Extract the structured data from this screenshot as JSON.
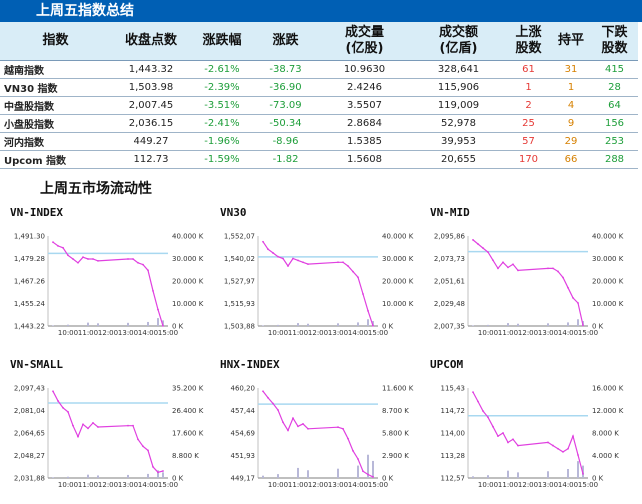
{
  "header_title": "上周五指数总结",
  "liquidity_title": "上周五市场流动性",
  "table": {
    "headers": [
      "指数",
      "收盘点数",
      "涨跌幅",
      "涨跌",
      "成交量\n(亿股)",
      "成交额\n(亿盾)",
      "上涨\n股数",
      "持平",
      "下跌\n股数"
    ],
    "rows": [
      {
        "name": "越南指数",
        "close": "1,443.32",
        "pct": "-2.61%",
        "chg": "-38.73",
        "volume": "10.9630",
        "value": "328,641",
        "up": "61",
        "flat": "31",
        "down": "415"
      },
      {
        "name": "VN30 指数",
        "close": "1,503.98",
        "pct": "-2.39%",
        "chg": "-36.90",
        "volume": "2.4246",
        "value": "115,906",
        "up": "1",
        "flat": "1",
        "down": "28"
      },
      {
        "name": "中盘股指数",
        "close": "2,007.45",
        "pct": "-3.51%",
        "chg": "-73.09",
        "volume": "3.5507",
        "value": "119,009",
        "up": "2",
        "flat": "4",
        "down": "64"
      },
      {
        "name": "小盘股指数",
        "close": "2,036.15",
        "pct": "-2.41%",
        "chg": "-50.34",
        "volume": "2.8684",
        "value": "52,978",
        "up": "25",
        "flat": "9",
        "down": "156"
      },
      {
        "name": "河内指数",
        "close": "449.27",
        "pct": "-1.96%",
        "chg": "-8.96",
        "volume": "1.5385",
        "value": "39,953",
        "up": "57",
        "flat": "29",
        "down": "253"
      },
      {
        "name": "Upcom 指数",
        "close": "112.73",
        "pct": "-1.59%",
        "chg": "-1.82",
        "volume": "1.5608",
        "value": "20,655",
        "up": "170",
        "flat": "66",
        "down": "288"
      }
    ]
  },
  "colors": {
    "header_bar": "#005fb4",
    "line": "#e040e0",
    "volume": "#b8b8d8",
    "ref_line": "#a8d8f0",
    "up": "#e53935",
    "flat": "#d68000",
    "down": "#1e9e3a"
  },
  "chart_data": [
    {
      "type": "line",
      "title": "VN-INDEX",
      "x_ticks": [
        "10:00",
        "11:00",
        "12:00",
        "13:00",
        "14:00",
        "15:00"
      ],
      "y_ticks": [
        "1,491.30",
        "1,479.28",
        "1,467.26",
        "1,455.24",
        "1,443.22"
      ],
      "y_right_ticks": [
        "40.000 K",
        "30.000 K",
        "20.000 K",
        "10.000 K",
        "0 K"
      ],
      "ylim": [
        1443.22,
        1491.3
      ],
      "y_right_lim": [
        0,
        40000
      ],
      "ref": 1482.05,
      "series": [
        {
          "name": "price",
          "x": [
            9.25,
            9.5,
            9.75,
            10.0,
            10.25,
            10.5,
            10.75,
            11.0,
            11.25,
            11.5,
            13.0,
            13.25,
            13.5,
            13.75,
            14.0,
            14.25,
            14.5,
            14.75
          ],
          "y": [
            1488,
            1486,
            1485,
            1481,
            1479,
            1477,
            1480,
            1479,
            1479,
            1478,
            1479,
            1479,
            1477,
            1476,
            1473,
            1462,
            1452,
            1443.3
          ]
        }
      ],
      "volume": {
        "x": [
          9.25,
          10.0,
          11.0,
          11.5,
          13.0,
          14.0,
          14.5,
          14.75
        ],
        "y": [
          300,
          600,
          1500,
          1200,
          1400,
          1800,
          3500,
          2500
        ]
      }
    },
    {
      "type": "line",
      "title": "VN30",
      "x_ticks": [
        "10:00",
        "11:00",
        "12:00",
        "13:00",
        "14:00",
        "15:00"
      ],
      "y_ticks": [
        "1,552,07",
        "1,540,02",
        "1,527,97",
        "1,515,93",
        "1,503,88"
      ],
      "y_right_ticks": [
        "40.000 K",
        "30.000 K",
        "20.000 K",
        "10.000 K",
        "0 K"
      ],
      "ylim": [
        1503.88,
        1552.07
      ],
      "y_right_lim": [
        0,
        40000
      ],
      "ref": 1540.88,
      "series": [
        {
          "name": "price",
          "x": [
            9.25,
            9.5,
            9.75,
            10.0,
            10.25,
            10.5,
            10.75,
            11.0,
            11.25,
            11.5,
            13.0,
            13.25,
            13.5,
            13.75,
            14.0,
            14.25,
            14.5,
            14.75
          ],
          "y": [
            1549,
            1545,
            1543,
            1541,
            1540,
            1536,
            1540,
            1539,
            1538,
            1537,
            1538,
            1538,
            1536,
            1533,
            1530,
            1521,
            1512,
            1504
          ]
        }
      ],
      "volume": {
        "x": [
          9.25,
          10.0,
          11.0,
          11.5,
          13.0,
          14.0,
          14.5,
          14.75
        ],
        "y": [
          300,
          500,
          1300,
          1000,
          1200,
          1600,
          3000,
          2200
        ]
      }
    },
    {
      "type": "line",
      "title": "VN-MID",
      "x_ticks": [
        "10:00",
        "11:00",
        "12:00",
        "13:00",
        "14:00",
        "15:00"
      ],
      "y_ticks": [
        "2,095,86",
        "2,073,73",
        "2,051,61",
        "2,029,48",
        "2,007,35"
      ],
      "y_right_ticks": [
        "40.000 K",
        "30.000 K",
        "20.000 K",
        "10.000 K",
        "0 K"
      ],
      "ylim": [
        2007.35,
        2095.86
      ],
      "y_right_lim": [
        0,
        40000
      ],
      "ref": 2080.54,
      "series": [
        {
          "name": "price",
          "x": [
            9.25,
            9.5,
            9.75,
            10.0,
            10.25,
            10.5,
            10.75,
            11.0,
            11.25,
            11.5,
            13.0,
            13.25,
            13.5,
            13.75,
            14.0,
            14.25,
            14.5,
            14.75
          ],
          "y": [
            2092,
            2088,
            2084,
            2080,
            2072,
            2064,
            2070,
            2065,
            2068,
            2062,
            2064,
            2064,
            2061,
            2055,
            2045,
            2035,
            2030,
            2008
          ]
        }
      ],
      "volume": {
        "x": [
          9.25,
          10.0,
          11.0,
          11.5,
          13.0,
          14.0,
          14.5,
          14.75
        ],
        "y": [
          300,
          500,
          1300,
          1000,
          1200,
          1600,
          3000,
          2200
        ]
      }
    },
    {
      "type": "line",
      "title": "VN-SMALL",
      "x_ticks": [
        "10:00",
        "11:00",
        "12:00",
        "13:00",
        "14:00",
        "15:00"
      ],
      "y_ticks": [
        "2,097,43",
        "2,081,04",
        "2,064,65",
        "2,048,27",
        "2,031,88"
      ],
      "y_right_ticks": [
        "35.200 K",
        "26.400 K",
        "17.600 K",
        "8.800 K",
        "0 K"
      ],
      "ylim": [
        2031.88,
        2097.43
      ],
      "y_right_lim": [
        0,
        35200
      ],
      "ref": 2086.49,
      "series": [
        {
          "name": "price",
          "x": [
            9.25,
            9.5,
            9.75,
            10.0,
            10.25,
            10.5,
            10.75,
            11.0,
            11.25,
            11.5,
            13.0,
            13.25,
            13.5,
            13.75,
            14.0,
            14.25,
            14.5,
            14.75
          ],
          "y": [
            2095,
            2088,
            2083,
            2080,
            2070,
            2062,
            2071,
            2068,
            2072,
            2069,
            2070,
            2070,
            2060,
            2055,
            2052,
            2040,
            2036,
            2037
          ]
        }
      ],
      "volume": {
        "x": [
          9.25,
          10.0,
          11.0,
          11.5,
          13.0,
          14.0,
          14.5,
          14.75
        ],
        "y": [
          300,
          500,
          1300,
          1000,
          1200,
          1600,
          3000,
          2200
        ]
      }
    },
    {
      "type": "line",
      "title": "HNX-INDEX",
      "x_ticks": [
        "10:00",
        "11:00",
        "12:00",
        "13:00",
        "14:00",
        "15:00"
      ],
      "y_ticks": [
        "460,20",
        "457,44",
        "454,69",
        "451,93",
        "449,17"
      ],
      "y_right_ticks": [
        "11.600 K",
        "8.700 K",
        "5.800 K",
        "2.900 K",
        "0 K"
      ],
      "ylim": [
        449.17,
        460.2
      ],
      "y_right_lim": [
        0,
        11600
      ],
      "ref": 458.23,
      "series": [
        {
          "name": "price",
          "x": [
            9.25,
            9.5,
            9.75,
            10.0,
            10.25,
            10.5,
            10.75,
            11.0,
            11.25,
            11.5,
            13.0,
            13.25,
            13.5,
            13.75,
            14.0,
            14.25,
            14.5,
            14.75
          ],
          "y": [
            459.8,
            459.0,
            458.3,
            457.5,
            456.0,
            455.0,
            456.5,
            455.5,
            455.8,
            455.2,
            455.4,
            455.2,
            454.0,
            452.5,
            451.5,
            450.0,
            449.6,
            449.3
          ]
        }
      ],
      "volume": {
        "x": [
          9.25,
          10.0,
          11.0,
          11.5,
          13.0,
          14.0,
          14.5,
          14.75
        ],
        "y": [
          300,
          500,
          1300,
          1000,
          1200,
          1600,
          3000,
          2200
        ]
      }
    },
    {
      "type": "line",
      "title": "UPCOM",
      "x_ticks": [
        "10:00",
        "11:00",
        "12:00",
        "13:00",
        "14:00",
        "15:00"
      ],
      "y_ticks": [
        "115,43",
        "114,72",
        "114,00",
        "113,28",
        "112,57"
      ],
      "y_right_ticks": [
        "16.000 K",
        "12.000 K",
        "8.000 K",
        "4.000 K",
        "0 K"
      ],
      "ylim": [
        112.57,
        115.43
      ],
      "y_right_lim": [
        0,
        16000
      ],
      "ref": 114.55,
      "series": [
        {
          "name": "price",
          "x": [
            9.25,
            9.5,
            9.75,
            10.0,
            10.25,
            10.5,
            10.75,
            11.0,
            11.25,
            11.5,
            13.0,
            13.25,
            13.5,
            13.75,
            14.0,
            14.25,
            14.5,
            14.75
          ],
          "y": [
            115.3,
            115.0,
            114.7,
            114.5,
            114.2,
            113.9,
            114.0,
            113.7,
            113.8,
            113.6,
            113.7,
            113.6,
            113.5,
            113.4,
            113.5,
            113.9,
            113.3,
            112.7
          ]
        }
      ],
      "volume": {
        "x": [
          9.25,
          10.0,
          11.0,
          11.5,
          13.0,
          14.0,
          14.5,
          14.75
        ],
        "y": [
          300,
          500,
          1300,
          1000,
          1200,
          1600,
          3000,
          2200
        ]
      }
    }
  ]
}
